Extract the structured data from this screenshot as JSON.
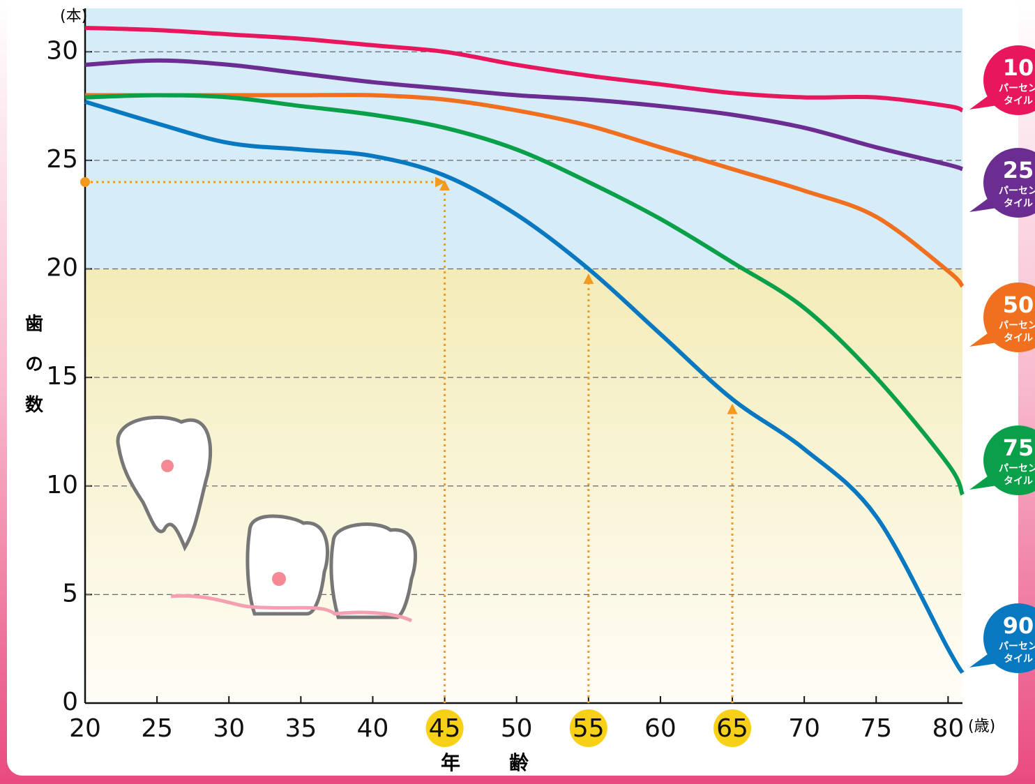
{
  "chart_data": {
    "type": "line",
    "y_unit": "(本)",
    "x_unit": "(歳)",
    "y_label": "歯の数",
    "x_label": "年齢",
    "x": [
      20,
      25,
      30,
      35,
      40,
      45,
      50,
      55,
      60,
      65,
      70,
      75,
      80,
      81
    ],
    "series": [
      {
        "name": "10",
        "color": "#e8175d",
        "values": [
          31.1,
          31.0,
          30.8,
          30.6,
          30.3,
          30.0,
          29.4,
          28.9,
          28.5,
          28.1,
          27.9,
          27.9,
          27.5,
          27.3
        ]
      },
      {
        "name": "25",
        "color": "#6b2d91",
        "values": [
          29.4,
          29.6,
          29.4,
          29.0,
          28.6,
          28.3,
          28.0,
          27.8,
          27.5,
          27.1,
          26.5,
          25.6,
          24.8,
          24.6
        ]
      },
      {
        "name": "50",
        "color": "#f07020",
        "values": [
          28.0,
          28.0,
          28.0,
          28.0,
          28.0,
          27.8,
          27.3,
          26.6,
          25.6,
          24.6,
          23.6,
          22.4,
          19.9,
          19.2
        ]
      },
      {
        "name": "75",
        "color": "#0aa04a",
        "values": [
          27.9,
          28.0,
          27.9,
          27.5,
          27.1,
          26.5,
          25.5,
          24.0,
          22.3,
          20.3,
          18.2,
          15.0,
          11.0,
          9.6
        ]
      },
      {
        "name": "90",
        "color": "#0878c0",
        "values": [
          27.7,
          26.7,
          25.8,
          25.5,
          25.2,
          24.3,
          22.5,
          20.0,
          17.0,
          14.0,
          11.7,
          8.6,
          2.5,
          1.4
        ]
      }
    ],
    "legend_line1": "パーセン",
    "legend_line2": "タイル",
    "xlim": [
      20,
      81
    ],
    "ylim": [
      0,
      32
    ],
    "xticks": [
      20,
      25,
      30,
      35,
      40,
      45,
      50,
      55,
      60,
      65,
      70,
      75,
      80
    ],
    "yticks": [
      0,
      5,
      10,
      15,
      20,
      25,
      30
    ],
    "highlight_x": [
      45,
      55,
      65
    ],
    "arrows": [
      {
        "from": [
          20,
          24
        ],
        "to": [
          45,
          24
        ]
      },
      {
        "from": [
          45,
          0
        ],
        "to": [
          45,
          24.3
        ]
      },
      {
        "from": [
          55,
          0
        ],
        "to": [
          55,
          20
        ]
      },
      {
        "from": [
          65,
          0
        ],
        "to": [
          65,
          14
        ]
      }
    ],
    "band_split": 20,
    "grid": true
  }
}
